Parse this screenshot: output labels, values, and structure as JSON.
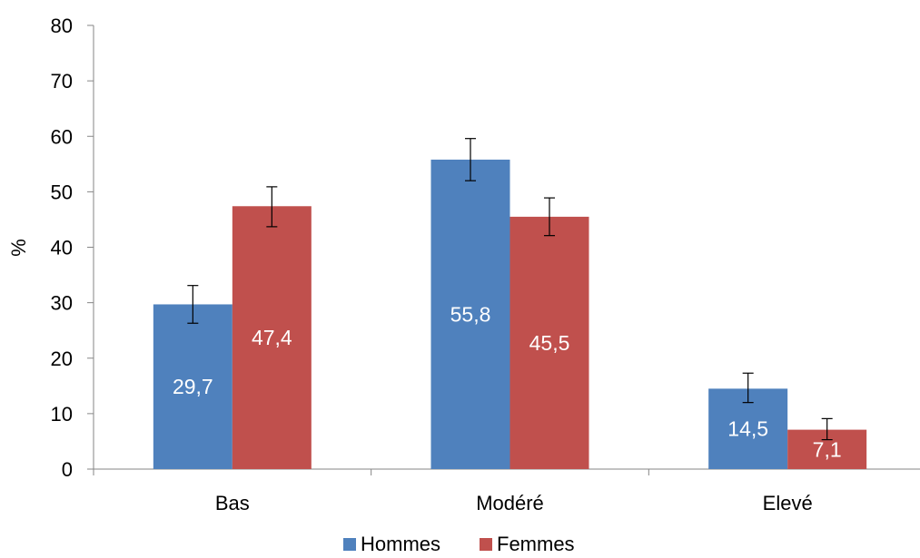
{
  "chart_data": {
    "type": "bar",
    "categories": [
      "Bas",
      "Modéré",
      "Elevé"
    ],
    "series": [
      {
        "name": "Hommes",
        "color": "#4F81BD",
        "values": [
          29.7,
          55.8,
          14.5
        ],
        "labels": [
          "29,7",
          "55,8",
          "14,5"
        ],
        "error_low": [
          26.3,
          52.0,
          12.0
        ],
        "error_high": [
          33.1,
          59.6,
          17.3
        ]
      },
      {
        "name": "Femmes",
        "color": "#C0504D",
        "values": [
          47.4,
          45.5,
          7.1
        ],
        "labels": [
          "47,4",
          "45,5",
          "7,1"
        ],
        "error_low": [
          43.7,
          42.1,
          5.3
        ],
        "error_high": [
          50.9,
          48.9,
          9.1
        ]
      }
    ],
    "ylabel": "%",
    "ylim": [
      0,
      80
    ],
    "yticks": [
      0,
      10,
      20,
      30,
      40,
      50,
      60,
      70,
      80
    ],
    "grid": false,
    "legend": "bottom"
  }
}
